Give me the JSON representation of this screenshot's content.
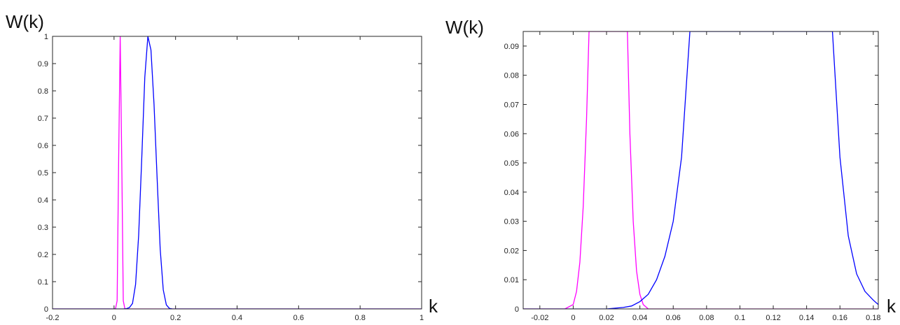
{
  "chart_data": [
    {
      "type": "line",
      "ylabel": "W(k)",
      "xlabel": "k",
      "xlim": [
        -0.2,
        1
      ],
      "ylim": [
        0,
        1
      ],
      "x_ticks": [
        "-0.2",
        "0",
        "0.2",
        "0.4",
        "0.6",
        "0.8",
        "1"
      ],
      "y_ticks": [
        "0",
        "0.1",
        "0.2",
        "0.3",
        "0.4",
        "0.5",
        "0.6",
        "0.7",
        "0.8",
        "0.9",
        "1"
      ],
      "grid": false,
      "series": [
        {
          "color": "#ff00ff",
          "x": [
            -0.2,
            0.0,
            0.005,
            0.01,
            0.015,
            0.02,
            0.025,
            0.03,
            0.035,
            0.04,
            0.045,
            1.0
          ],
          "y": [
            0,
            0,
            0.002,
            0.03,
            0.55,
            1.0,
            0.55,
            0.03,
            0.002,
            0,
            0,
            0
          ]
        },
        {
          "color": "#0000ff",
          "x": [
            -0.2,
            0.03,
            0.04,
            0.05,
            0.06,
            0.07,
            0.08,
            0.09,
            0.1,
            0.11,
            0.12,
            0.13,
            0.14,
            0.15,
            0.16,
            0.17,
            0.18,
            0.19,
            1.0
          ],
          "y": [
            0,
            0,
            0.001,
            0.005,
            0.02,
            0.09,
            0.27,
            0.55,
            0.85,
            1.0,
            0.95,
            0.75,
            0.48,
            0.22,
            0.07,
            0.015,
            0.002,
            0,
            0
          ]
        }
      ]
    },
    {
      "type": "line",
      "ylabel": "W(k)",
      "xlabel": "k",
      "xlim": [
        -0.03,
        0.183
      ],
      "ylim": [
        0,
        0.095
      ],
      "x_ticks": [
        "-0.02",
        "0",
        "0.02",
        "0.04",
        "0.06",
        "0.08",
        "0.1",
        "0.12",
        "0.14",
        "0.16",
        "0.18"
      ],
      "y_ticks": [
        "0",
        "0.01",
        "0.02",
        "0.03",
        "0.04",
        "0.05",
        "0.06",
        "0.07",
        "0.08",
        "0.09"
      ],
      "grid": false,
      "series": [
        {
          "color": "#ff00ff",
          "x": [
            -0.03,
            -0.005,
            0.0,
            0.002,
            0.004,
            0.006,
            0.008,
            0.0095,
            0.0325,
            0.034,
            0.036,
            0.038,
            0.04,
            0.042,
            0.045,
            0.183
          ],
          "y": [
            0,
            0,
            0.0015,
            0.006,
            0.016,
            0.035,
            0.065,
            0.095,
            0.095,
            0.06,
            0.03,
            0.013,
            0.005,
            0.0015,
            0,
            0
          ]
        },
        {
          "color": "#0000ff",
          "x": [
            -0.03,
            0.02,
            0.03,
            0.035,
            0.04,
            0.045,
            0.05,
            0.055,
            0.06,
            0.065,
            0.07,
            0.1555,
            0.16,
            0.165,
            0.17,
            0.175,
            0.18,
            0.183
          ],
          "y": [
            0,
            0,
            0.0005,
            0.001,
            0.0025,
            0.005,
            0.01,
            0.018,
            0.03,
            0.052,
            0.095,
            0.095,
            0.052,
            0.025,
            0.012,
            0.006,
            0.003,
            0.0015
          ]
        }
      ]
    }
  ]
}
